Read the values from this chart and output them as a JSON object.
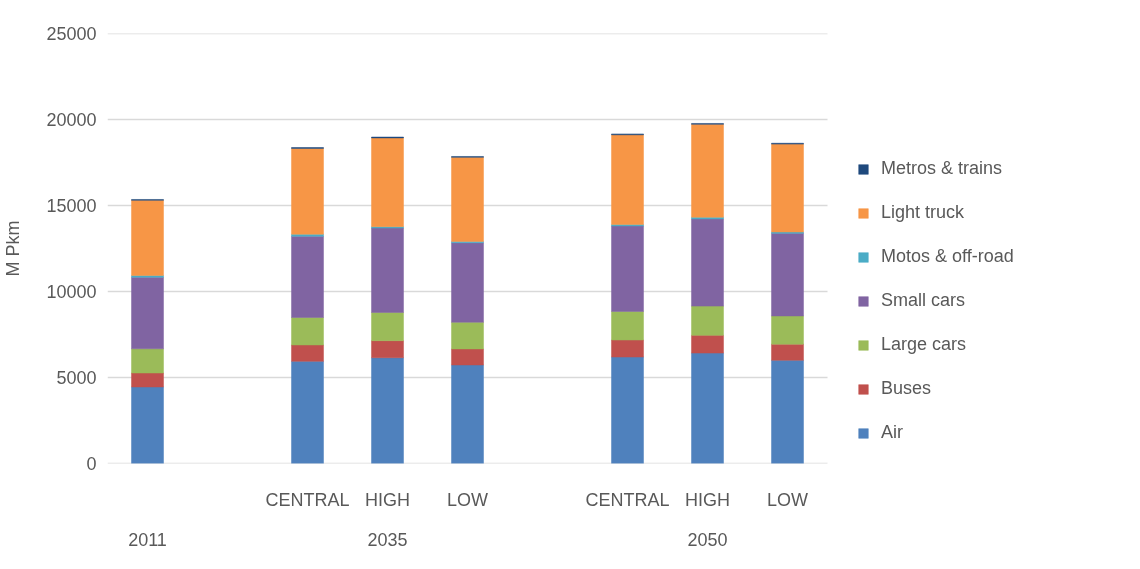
{
  "chart_data": {
    "type": "bar",
    "stacked": true,
    "ylabel": "M Pkm",
    "categories": [
      null,
      null,
      "CENTRAL",
      "HIGH",
      "LOW",
      null,
      "CENTRAL",
      "HIGH",
      "LOW"
    ],
    "annotations": [
      "2011",
      "2035",
      "2050"
    ],
    "ylim": [
      0,
      25000
    ],
    "yticks": [
      0,
      5000,
      10000,
      15000,
      20000,
      25000
    ],
    "grid": "y",
    "legend": "right",
    "series": [
      {
        "name": "Air",
        "color": "#4f81bd",
        "values": [
          4450,
          null,
          5940,
          6150,
          5730,
          null,
          6190,
          6420,
          6000
        ]
      },
      {
        "name": "Buses",
        "color": "#c0504d",
        "values": [
          810,
          null,
          950,
          990,
          930,
          null,
          990,
          1030,
          940
        ]
      },
      {
        "name": "Large cars",
        "color": "#9bbb59",
        "values": [
          1410,
          null,
          1600,
          1640,
          1550,
          null,
          1660,
          1700,
          1640
        ]
      },
      {
        "name": "Small cars",
        "color": "#8064a2",
        "values": [
          4160,
          null,
          4720,
          4910,
          4620,
          null,
          4970,
          5070,
          4800
        ]
      },
      {
        "name": "Motos & off-road",
        "color": "#4bacc6",
        "values": [
          100,
          null,
          120,
          80,
          80,
          null,
          80,
          100,
          80
        ]
      },
      {
        "name": "Light truck",
        "color": "#f79646",
        "values": [
          4370,
          null,
          4990,
          5160,
          4890,
          null,
          5220,
          5400,
          5110
        ]
      },
      {
        "name": "Metros & trains",
        "color": "#1f497d",
        "values": [
          50,
          null,
          50,
          50,
          50,
          null,
          50,
          50,
          50
        ]
      }
    ]
  }
}
